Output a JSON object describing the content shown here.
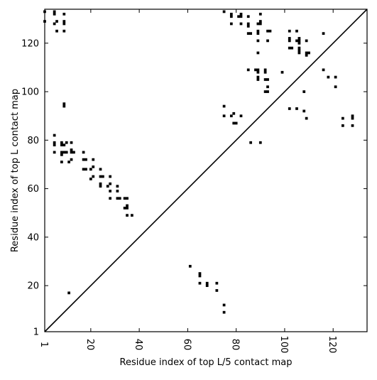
{
  "chart_data": {
    "type": "scatter",
    "xlabel": "Residue index of top L/5 contact map",
    "ylabel": "Residue index of top L contact map",
    "xlim": [
      1,
      134
    ],
    "ylim": [
      1,
      134
    ],
    "xticks": [
      1,
      20,
      40,
      60,
      80,
      100,
      120
    ],
    "yticks": [
      1,
      20,
      40,
      60,
      80,
      100,
      120
    ],
    "x_tick_rotation": "vertical",
    "diagonal": true,
    "marker": "square",
    "color": "#000000",
    "lower_triangle_points": [
      [
        61,
        28
      ],
      [
        65,
        25
      ],
      [
        65,
        24
      ],
      [
        65,
        21
      ],
      [
        68,
        21
      ],
      [
        68,
        20
      ],
      [
        72,
        21
      ],
      [
        72,
        18
      ],
      [
        75,
        12
      ],
      [
        75,
        9
      ],
      [
        11,
        17
      ]
    ],
    "upper_triangle_points": [
      [
        1,
        133
      ],
      [
        1,
        129
      ],
      [
        5,
        133
      ],
      [
        5,
        132
      ],
      [
        6,
        129
      ],
      [
        5,
        128
      ],
      [
        6,
        125
      ],
      [
        9,
        132
      ],
      [
        9,
        129
      ],
      [
        9,
        128
      ],
      [
        9,
        125
      ],
      [
        9,
        95
      ],
      [
        9,
        94
      ],
      [
        5,
        82
      ],
      [
        5,
        79
      ],
      [
        5,
        78
      ],
      [
        5,
        75
      ],
      [
        8,
        79
      ],
      [
        8,
        78
      ],
      [
        9,
        78
      ],
      [
        10,
        79
      ],
      [
        8,
        75
      ],
      [
        9,
        75
      ],
      [
        10,
        75
      ],
      [
        8,
        74
      ],
      [
        8,
        71
      ],
      [
        11,
        71
      ],
      [
        12,
        72
      ],
      [
        12,
        79
      ],
      [
        12,
        76
      ],
      [
        12,
        75
      ],
      [
        13,
        75
      ],
      [
        17,
        75
      ],
      [
        17,
        72
      ],
      [
        18,
        72
      ],
      [
        17,
        68
      ],
      [
        18,
        68
      ],
      [
        20,
        68
      ],
      [
        21,
        69
      ],
      [
        21,
        72
      ],
      [
        20,
        64
      ],
      [
        21,
        65
      ],
      [
        24,
        68
      ],
      [
        24,
        65
      ],
      [
        25,
        65
      ],
      [
        24,
        62
      ],
      [
        24,
        61
      ],
      [
        27,
        61
      ],
      [
        28,
        62
      ],
      [
        28,
        65
      ],
      [
        28,
        59
      ],
      [
        28,
        56
      ],
      [
        31,
        61
      ],
      [
        31,
        59
      ],
      [
        31,
        56
      ],
      [
        32,
        56
      ],
      [
        34,
        56
      ],
      [
        35,
        56
      ],
      [
        34,
        52
      ],
      [
        35,
        52
      ],
      [
        35,
        53
      ],
      [
        35,
        49
      ],
      [
        37,
        49
      ],
      [
        75,
        133
      ],
      [
        78,
        132
      ],
      [
        78,
        131
      ],
      [
        78,
        128
      ],
      [
        81,
        131
      ],
      [
        82,
        132
      ],
      [
        82,
        131
      ],
      [
        82,
        128
      ],
      [
        85,
        131
      ],
      [
        85,
        128
      ],
      [
        85,
        127
      ],
      [
        85,
        124
      ],
      [
        86,
        124
      ],
      [
        89,
        124
      ],
      [
        89,
        125
      ],
      [
        89,
        128
      ],
      [
        90,
        128
      ],
      [
        90,
        129
      ],
      [
        90,
        132
      ],
      [
        93,
        125
      ],
      [
        94,
        125
      ],
      [
        93,
        121
      ],
      [
        89,
        121
      ],
      [
        89,
        116
      ],
      [
        85,
        109
      ],
      [
        88,
        109
      ],
      [
        89,
        109
      ],
      [
        89,
        108
      ],
      [
        89,
        106
      ],
      [
        89,
        105
      ],
      [
        92,
        109
      ],
      [
        92,
        108
      ],
      [
        92,
        105
      ],
      [
        93,
        105
      ],
      [
        93,
        102
      ],
      [
        92,
        100
      ],
      [
        93,
        100
      ],
      [
        75,
        94
      ],
      [
        75,
        90
      ],
      [
        78,
        90
      ],
      [
        79,
        91
      ],
      [
        79,
        87
      ],
      [
        80,
        87
      ],
      [
        82,
        90
      ],
      [
        86,
        79
      ],
      [
        90,
        79
      ],
      [
        99,
        108
      ],
      [
        102,
        125
      ],
      [
        102,
        122
      ],
      [
        102,
        121
      ],
      [
        102,
        118
      ],
      [
        103,
        118
      ],
      [
        105,
        125
      ],
      [
        105,
        121
      ],
      [
        106,
        121
      ],
      [
        106,
        122
      ],
      [
        106,
        120
      ],
      [
        106,
        118
      ],
      [
        106,
        117
      ],
      [
        106,
        116
      ],
      [
        109,
        121
      ],
      [
        109,
        116
      ],
      [
        110,
        116
      ],
      [
        109,
        115
      ],
      [
        116,
        124
      ],
      [
        102,
        93
      ],
      [
        105,
        93
      ],
      [
        108,
        100
      ],
      [
        108,
        92
      ],
      [
        109,
        89
      ],
      [
        116,
        109
      ],
      [
        118,
        106
      ],
      [
        121,
        106
      ],
      [
        121,
        102
      ],
      [
        124,
        89
      ],
      [
        124,
        86
      ],
      [
        128,
        90
      ],
      [
        128,
        89
      ],
      [
        128,
        86
      ]
    ]
  }
}
